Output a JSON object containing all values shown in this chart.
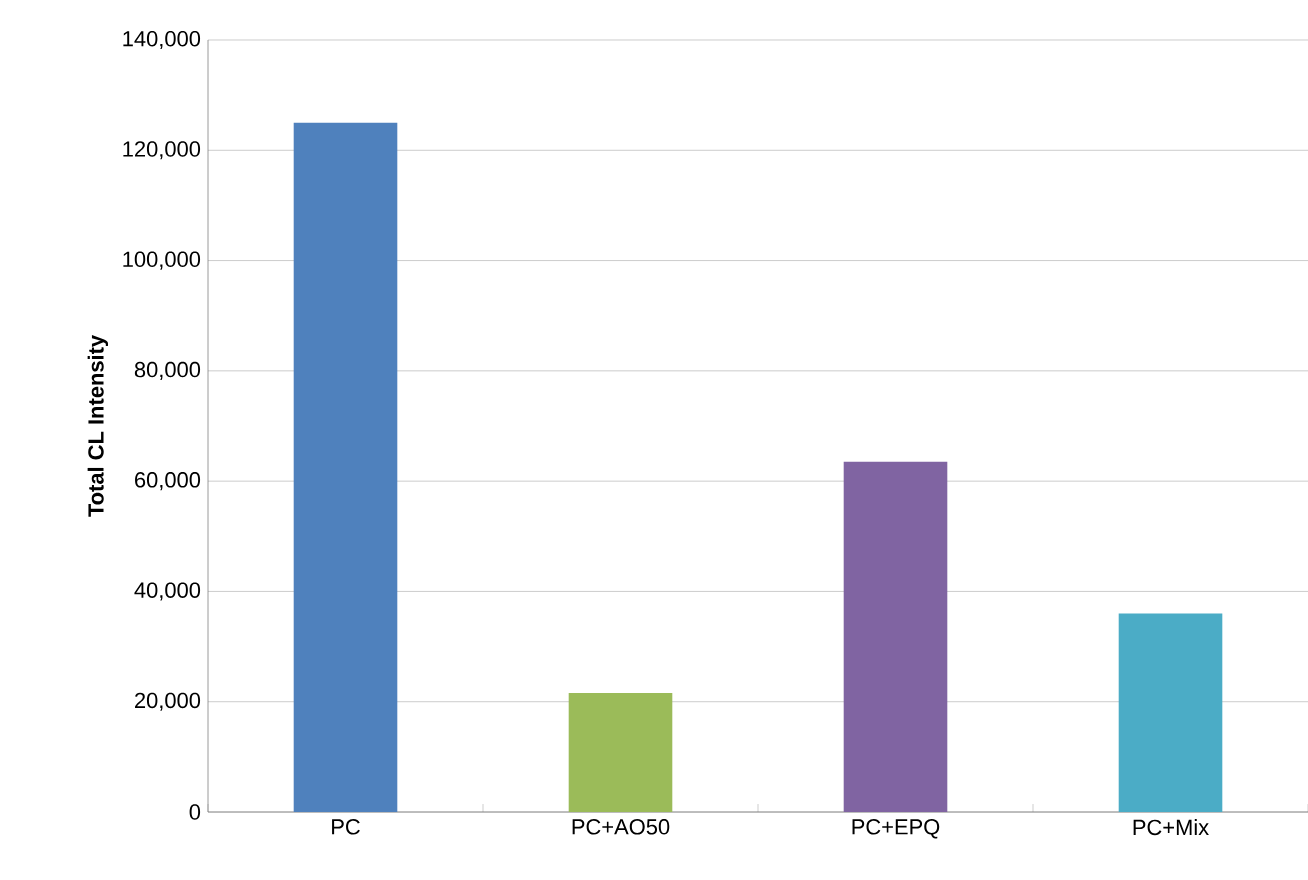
{
  "chart_data": {
    "type": "bar",
    "ylabel": "Total CL Intensity",
    "categories": [
      "PC",
      "PC+AO50",
      "PC+EPQ",
      "PC+Mix"
    ],
    "values": [
      125000,
      21600,
      63500,
      36000
    ],
    "colors": [
      "#4f81bd",
      "#9bbb59",
      "#8064a2",
      "#4bacc6"
    ],
    "ylim": [
      0,
      140000
    ],
    "yticks": [
      {
        "value": 0,
        "label": "0"
      },
      {
        "value": 20000,
        "label": "20,000"
      },
      {
        "value": 40000,
        "label": "40,000"
      },
      {
        "value": 60000,
        "label": "60,000"
      },
      {
        "value": 80000,
        "label": "80,000"
      },
      {
        "value": 100000,
        "label": "100,000"
      },
      {
        "value": 120000,
        "label": "120,000"
      },
      {
        "value": 140000,
        "label": "140,000"
      }
    ],
    "grid": "y"
  }
}
